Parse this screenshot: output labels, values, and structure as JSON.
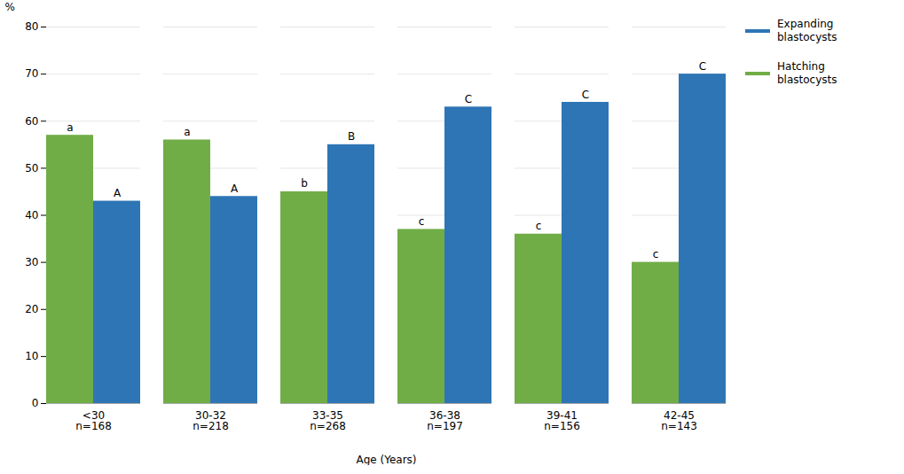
{
  "chart_data": {
    "type": "bar",
    "xlabel": "Age (Years)",
    "ylabel": "%",
    "categories": [
      "<30\nn=168",
      "30-32\nn=218",
      "33-35\nn=268",
      "36-38\nn=197",
      "39-41\nn=156",
      "42-45\nn=143"
    ],
    "series": [
      {
        "name": "Hatching\nblastocysts",
        "color": "#70AD47",
        "values": [
          57,
          56,
          45,
          37,
          36,
          30
        ],
        "annotations": [
          "a",
          "a",
          "b",
          "c",
          "c",
          "c"
        ]
      },
      {
        "name": "Expanding\nblastocysts",
        "color": "#2E75B6",
        "values": [
          43,
          44,
          55,
          63,
          64,
          70
        ],
        "annotations": [
          "A",
          "A",
          "B",
          "C",
          "C",
          "C"
        ]
      }
    ],
    "ylim": [
      0,
      80
    ],
    "yticks": [
      0,
      10,
      20,
      30,
      40,
      50,
      60,
      70,
      80
    ],
    "grid": true,
    "legend": "right"
  }
}
